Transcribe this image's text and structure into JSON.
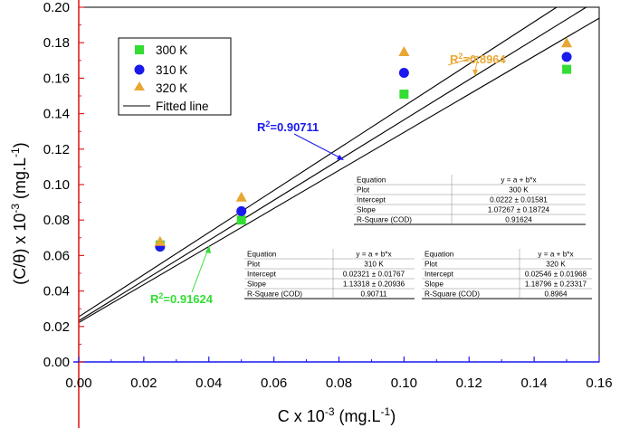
{
  "chart_data": {
    "type": "scatter",
    "title": "",
    "xlabel": "C x 10-3 (mg.L-1)",
    "ylabel": "(C/θ) x 10-3 (mg.L-1)",
    "xlabel_parts": {
      "base": "C x 10",
      "exp1": "-3",
      "mid": " (mg.L",
      "exp2": "-1",
      "end": ")"
    },
    "ylabel_parts": {
      "base": "(C/θ) x 10",
      "exp1": "-3",
      "mid": " (mg.L",
      "exp2": "-1",
      "end": ")"
    },
    "xlim": [
      0.0,
      0.16
    ],
    "ylim": [
      0.0,
      0.2
    ],
    "xticks": [
      "0.00",
      "0.02",
      "0.04",
      "0.06",
      "0.08",
      "0.10",
      "0.12",
      "0.14",
      "0.16"
    ],
    "yticks": [
      "0.00",
      "0.02",
      "0.04",
      "0.06",
      "0.08",
      "0.10",
      "0.12",
      "0.14",
      "0.16",
      "0.18",
      "0.20"
    ],
    "x": [
      0.025,
      0.05,
      0.1,
      0.15
    ],
    "series": [
      {
        "name": "300 K",
        "marker": "square",
        "color": "#33dd33",
        "values": [
          0.066,
          0.08,
          0.151,
          0.165
        ],
        "fit": {
          "intercept": 0.0222,
          "slope": 1.07267
        }
      },
      {
        "name": "310 K",
        "marker": "circle",
        "color": "#1a1aee",
        "values": [
          0.065,
          0.085,
          0.163,
          0.172
        ],
        "fit": {
          "intercept": 0.02321,
          "slope": 1.13318
        }
      },
      {
        "name": "320 K",
        "marker": "triangle",
        "color": "#e8a732",
        "values": [
          0.068,
          0.093,
          0.175,
          0.18
        ],
        "fit": {
          "intercept": 0.02546,
          "slope": 1.18796
        }
      }
    ],
    "legend": {
      "items": [
        {
          "label": "300 K",
          "marker": "square",
          "color": "#33dd33"
        },
        {
          "label": "310 K",
          "marker": "circle",
          "color": "#1a1aee"
        },
        {
          "label": "320 K",
          "marker": "triangle",
          "color": "#e8a732"
        },
        {
          "label": "Fitted line",
          "marker": "line",
          "color": "#000000"
        }
      ],
      "placement": "top-left"
    },
    "annotations": [
      {
        "label_prefix": "R",
        "sup": "2",
        "value": "=0.8964",
        "color": "#e8a732"
      },
      {
        "label_prefix": "R",
        "sup": "2",
        "value": "=0.90711",
        "color": "#1a1aee"
      },
      {
        "label_prefix": "R",
        "sup": "2",
        "value": "=0.91624",
        "color": "#33dd33"
      }
    ],
    "tables": [
      {
        "rows": [
          [
            "Equation",
            "y = a + b*x"
          ],
          [
            "Plot",
            "300 K"
          ],
          [
            "Intercept",
            "0.0222 ± 0.01581"
          ],
          [
            "Slope",
            "1.07267 ± 0.18724"
          ],
          [
            "R-Square (COD)",
            "0.91624"
          ]
        ]
      },
      {
        "rows": [
          [
            "Equation",
            "y = a + b*x"
          ],
          [
            "Plot",
            "310 K"
          ],
          [
            "Intercept",
            "0.02321 ± 0.01767"
          ],
          [
            "Slope",
            "1.13318 ± 0.20936"
          ],
          [
            "R-Square (COD)",
            "0.90711"
          ]
        ]
      },
      {
        "rows": [
          [
            "Equation",
            "y = a + b*x"
          ],
          [
            "Plot",
            "320 K"
          ],
          [
            "Intercept",
            "0.02546 ± 0.01968"
          ],
          [
            "Slope",
            "1.18796 ± 0.23317"
          ],
          [
            "R-Square (COD)",
            "0.8964"
          ]
        ]
      }
    ]
  }
}
